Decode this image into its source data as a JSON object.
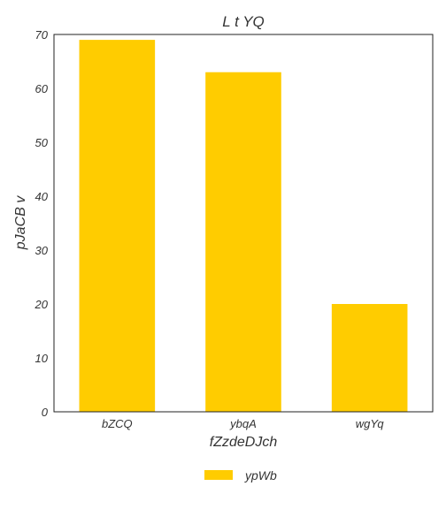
{
  "chart_data": {
    "type": "bar",
    "title": "L t YQ",
    "xlabel": "fZzdeDJch",
    "ylabel": "pJaCB v",
    "categories": [
      "bZCQ",
      "ybqA",
      "wgYq"
    ],
    "series": [
      {
        "name": "ypWb",
        "values": [
          69,
          63,
          20
        ],
        "color": "#ffcc00"
      }
    ],
    "ylim": [
      0,
      70
    ],
    "yticks": [
      0,
      10,
      20,
      30,
      40,
      50,
      60,
      70
    ],
    "grid": false,
    "legend_position": "bottom-center"
  }
}
